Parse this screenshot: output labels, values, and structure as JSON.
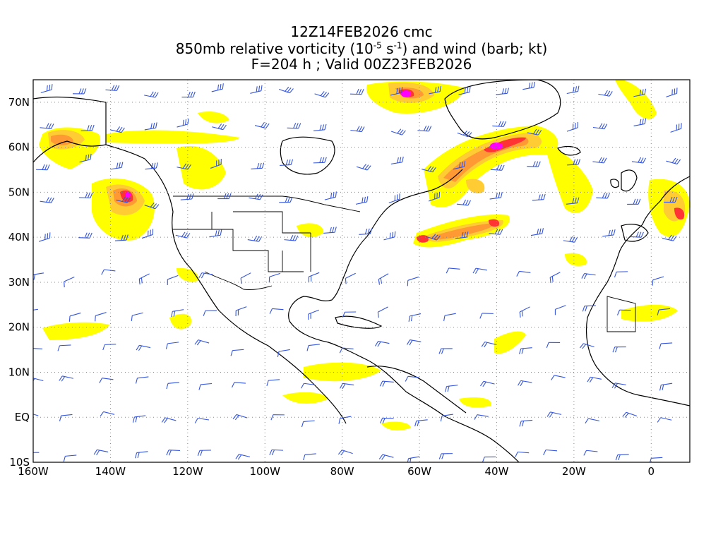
{
  "header": {
    "line1": "12Z14FEB2026 cmc",
    "line2_pre": "850mb relative vorticity (10",
    "line2_exp1": "-5",
    "line2_mid": " s",
    "line2_exp2": "-1",
    "line2_post": ") and wind (barb; kt)",
    "line3": "F=204 h ; Valid 00Z23FEB2026"
  },
  "map": {
    "lon_range": [
      -160,
      10
    ],
    "lat_range": [
      -10,
      75
    ],
    "lat_labels": [
      {
        "lat": 70,
        "text": "70N"
      },
      {
        "lat": 60,
        "text": "60N"
      },
      {
        "lat": 50,
        "text": "50N"
      },
      {
        "lat": 40,
        "text": "40N"
      },
      {
        "lat": 30,
        "text": "30N"
      },
      {
        "lat": 20,
        "text": "20N"
      },
      {
        "lat": 10,
        "text": "10N"
      },
      {
        "lat": 0,
        "text": "EQ"
      },
      {
        "lat": -10,
        "text": "10S"
      }
    ],
    "lon_labels": [
      {
        "lon": -160,
        "text": "160W"
      },
      {
        "lon": -140,
        "text": "140W"
      },
      {
        "lon": -120,
        "text": "120W"
      },
      {
        "lon": -100,
        "text": "100W"
      },
      {
        "lon": -80,
        "text": "80W"
      },
      {
        "lon": -60,
        "text": "60W"
      },
      {
        "lon": -40,
        "text": "40W"
      },
      {
        "lon": -20,
        "text": "20W"
      },
      {
        "lon": 0,
        "text": "0"
      }
    ],
    "colors": {
      "low": "#ffff00",
      "mid1": "#ffcc33",
      "mid2": "#ff9933",
      "high": "#ff3333",
      "peak": "#ff00ff",
      "barb": "#3355dd",
      "coast": "#000000",
      "grid": "#888888"
    }
  }
}
